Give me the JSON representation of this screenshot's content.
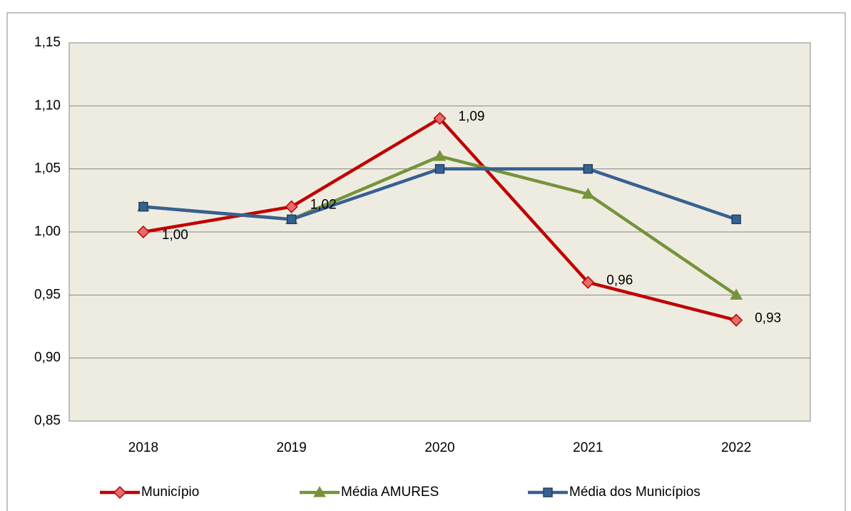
{
  "chart_data": {
    "type": "line",
    "categories": [
      "2018",
      "2019",
      "2020",
      "2021",
      "2022"
    ],
    "series": [
      {
        "name": "Município",
        "color": "#c00000",
        "marker": "diamond",
        "values": [
          1.0,
          1.02,
          1.09,
          0.96,
          0.93
        ],
        "value_labels": [
          "1,00",
          "1,02",
          "1,09",
          "0,96",
          "0,93"
        ]
      },
      {
        "name": "Média AMURES",
        "color": "#77933c",
        "marker": "triangle",
        "values": [
          1.02,
          1.01,
          1.06,
          1.03,
          0.95
        ]
      },
      {
        "name": "Média dos Municípios",
        "color": "#376092",
        "marker": "square",
        "values": [
          1.02,
          1.01,
          1.05,
          1.05,
          1.01
        ]
      }
    ],
    "ylim": [
      0.85,
      1.15
    ],
    "yticks": [
      {
        "value": 0.85,
        "label": "0,85"
      },
      {
        "value": 0.9,
        "label": "0,90"
      },
      {
        "value": 0.95,
        "label": "0,95"
      },
      {
        "value": 1.0,
        "label": "1,00"
      },
      {
        "value": 1.05,
        "label": "1,05"
      },
      {
        "value": 1.1,
        "label": "1,10"
      },
      {
        "value": 1.15,
        "label": "1,15"
      }
    ],
    "grid": true,
    "legend": "bottom"
  }
}
